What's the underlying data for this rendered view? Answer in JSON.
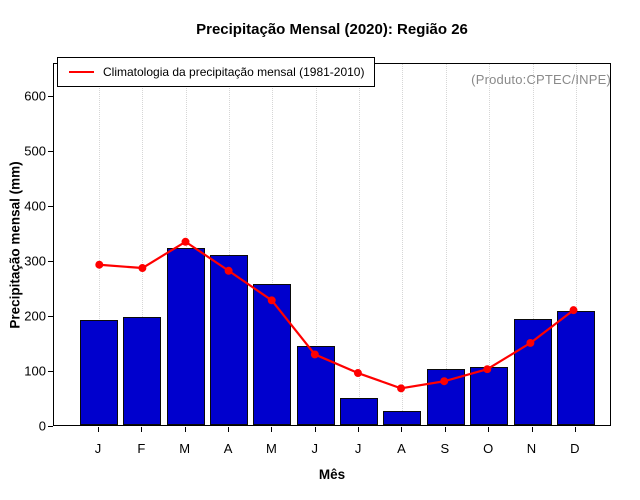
{
  "annotation": "(Produto:CPTEC/INPE)",
  "colors": {
    "bar": "#0000CD",
    "line": "#FF0000",
    "grid": "#D6D6D6",
    "annotation_text": "#8A8A8A"
  },
  "chart_data": {
    "type": "bar",
    "title": "Precipitação Mensal (2020): Região 26",
    "xlabel": "Mês",
    "ylabel": "Precipitação mensal (mm)",
    "categories": [
      "J",
      "F",
      "M",
      "A",
      "M",
      "J",
      "J",
      "A",
      "S",
      "O",
      "N",
      "D"
    ],
    "series": [
      {
        "name": "Precipitação mensal (2020)",
        "type": "bar",
        "color": "#0000CD",
        "values": [
          191,
          197,
          321,
          309,
          256,
          143,
          50,
          26,
          102,
          106,
          192,
          207
        ]
      },
      {
        "name": "Climatologia da precipitação mensal (1981-2010)",
        "type": "line",
        "color": "#FF0000",
        "values": [
          293,
          287,
          335,
          282,
          228,
          129,
          95,
          67,
          80,
          102,
          150,
          210
        ]
      }
    ],
    "ylim": [
      0,
      660
    ],
    "yticks": [
      0,
      100,
      200,
      300,
      400,
      500,
      600
    ],
    "grid": "vertical-dotted",
    "legend_position": "top-left",
    "legend_entries": [
      "Climatologia da precipitação mensal (1981-2010)"
    ]
  }
}
